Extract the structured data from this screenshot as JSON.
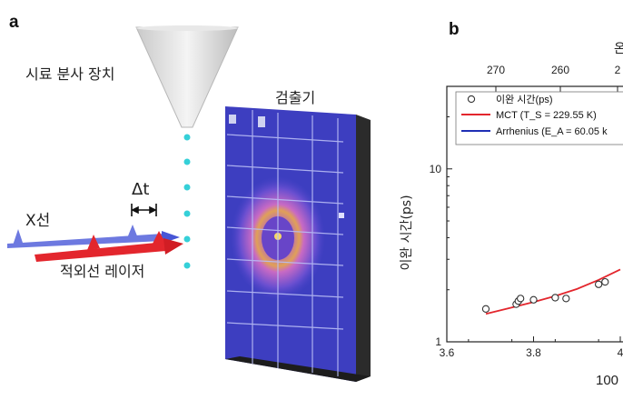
{
  "panel_a": {
    "letter": "a",
    "nozzle_label": "시료 분사 장치",
    "detector_label": "검출기",
    "xray_label": "X선",
    "dt_label": "Δt",
    "laser_label": "적외선 레이저"
  },
  "panel_b": {
    "letter": "b",
    "top_axis_label_partial": "온",
    "xlabel_partial": "100",
    "ylabel": "이완 시간(ps)"
  },
  "chart_data": {
    "type": "scatter",
    "xlabel": "100",
    "ylabel": "이완 시간(ps)",
    "xlim": [
      3.6,
      4.0
    ],
    "x_ticks": [
      "3.6",
      "3.8",
      "4"
    ],
    "y_scale": "log",
    "ylim": [
      1,
      30
    ],
    "y_ticks": [
      "1",
      "10"
    ],
    "top_axis_ticks": [
      "270",
      "260",
      "2"
    ],
    "legend": {
      "placement": "top-left",
      "entries": [
        "이완 시간(ps)",
        "MCT (T_S = 229.55 K)",
        "Arrhenius (E_A = 60.05 k"
      ]
    },
    "series": [
      {
        "name": "이완 시간(ps)",
        "kind": "points",
        "x": [
          3.69,
          3.76,
          3.765,
          3.77,
          3.8,
          3.85,
          3.875,
          3.95,
          3.965
        ],
        "y": [
          1.55,
          1.65,
          1.72,
          1.78,
          1.75,
          1.8,
          1.78,
          2.15,
          2.22
        ]
      },
      {
        "name": "MCT (T_S = 229.55 K)",
        "kind": "line",
        "x": [
          3.69,
          3.75,
          3.8,
          3.85,
          3.9,
          3.95,
          4.0
        ],
        "y": [
          1.45,
          1.58,
          1.7,
          1.84,
          2.02,
          2.28,
          2.62
        ]
      },
      {
        "name": "Arrhenius (E_A = 60.05 k",
        "kind": "line",
        "x": [],
        "y": []
      }
    ],
    "colors": {
      "mct": "#e3262d",
      "arrhenius": "#1f2fb5"
    }
  }
}
